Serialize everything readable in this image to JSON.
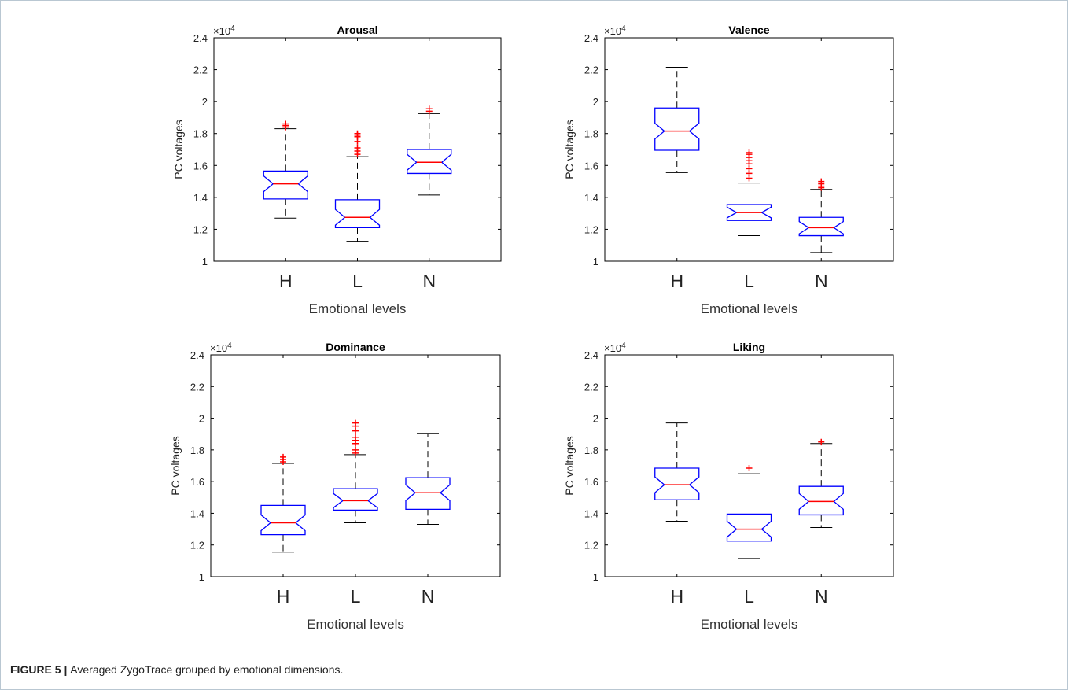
{
  "caption": {
    "label": "FIGURE 5",
    "separator": " | ",
    "text": "Averaged ZygoTrace grouped by emotional dimensions."
  },
  "chart_data": [
    {
      "type": "boxplot",
      "title": "Arousal",
      "xlabel": "Emotional levels",
      "ylabel": "PC voltages",
      "exponent": "×10",
      "exponent_power": "4",
      "ylim": [
        1.0,
        2.4
      ],
      "yticks": [
        "1",
        "1.2",
        "1.4",
        "1.6",
        "1.8",
        "2",
        "2.2",
        "2.4"
      ],
      "categories": [
        "H",
        "L",
        "N"
      ],
      "notched": true,
      "grid": false,
      "boxes": [
        {
          "category": "H",
          "min": 1.27,
          "q1": 1.39,
          "median": 1.485,
          "q3": 1.565,
          "max": 1.83,
          "outliers": [
            1.84,
            1.85,
            1.86
          ]
        },
        {
          "category": "L",
          "min": 1.125,
          "q1": 1.21,
          "median": 1.275,
          "q3": 1.385,
          "max": 1.655,
          "outliers": [
            1.67,
            1.69,
            1.71,
            1.75,
            1.78,
            1.79,
            1.8
          ]
        },
        {
          "category": "N",
          "min": 1.415,
          "q1": 1.55,
          "median": 1.62,
          "q3": 1.7,
          "max": 1.925,
          "outliers": [
            1.94,
            1.955
          ]
        }
      ]
    },
    {
      "type": "boxplot",
      "title": "Valence",
      "xlabel": "Emotional levels",
      "ylabel": "PC voltages",
      "exponent": "×10",
      "exponent_power": "4",
      "ylim": [
        1.0,
        2.4
      ],
      "yticks": [
        "1",
        "1.2",
        "1.4",
        "1.6",
        "1.8",
        "2",
        "2.2",
        "2.4"
      ],
      "categories": [
        "H",
        "L",
        "N"
      ],
      "notched": true,
      "grid": false,
      "boxes": [
        {
          "category": "H",
          "min": 1.555,
          "q1": 1.695,
          "median": 1.815,
          "q3": 1.96,
          "max": 2.215,
          "outliers": []
        },
        {
          "category": "L",
          "min": 1.16,
          "q1": 1.255,
          "median": 1.305,
          "q3": 1.355,
          "max": 1.49,
          "outliers": [
            1.52,
            1.55,
            1.58,
            1.61,
            1.63,
            1.65,
            1.67,
            1.68
          ]
        },
        {
          "category": "N",
          "min": 1.055,
          "q1": 1.16,
          "median": 1.21,
          "q3": 1.275,
          "max": 1.45,
          "outliers": [
            1.46,
            1.47,
            1.485,
            1.5
          ]
        }
      ]
    },
    {
      "type": "boxplot",
      "title": "Dominance",
      "xlabel": "Emotional levels",
      "ylabel": "PC voltages",
      "exponent": "×10",
      "exponent_power": "4",
      "ylim": [
        1.0,
        2.4
      ],
      "yticks": [
        "1",
        "1.2",
        "1.4",
        "1.6",
        "1.8",
        "2",
        "2.2",
        "2.4"
      ],
      "categories": [
        "H",
        "L",
        "N"
      ],
      "notched": true,
      "grid": false,
      "boxes": [
        {
          "category": "H",
          "min": 1.155,
          "q1": 1.265,
          "median": 1.34,
          "q3": 1.45,
          "max": 1.715,
          "outliers": [
            1.725,
            1.74,
            1.755
          ]
        },
        {
          "category": "L",
          "min": 1.34,
          "q1": 1.42,
          "median": 1.48,
          "q3": 1.555,
          "max": 1.77,
          "outliers": [
            1.78,
            1.8,
            1.84,
            1.86,
            1.88,
            1.92,
            1.95,
            1.97
          ]
        },
        {
          "category": "N",
          "min": 1.33,
          "q1": 1.425,
          "median": 1.53,
          "q3": 1.625,
          "max": 1.905,
          "outliers": []
        }
      ]
    },
    {
      "type": "boxplot",
      "title": "Liking",
      "xlabel": "Emotional levels",
      "ylabel": "PC voltages",
      "exponent": "×10",
      "exponent_power": "4",
      "ylim": [
        1.0,
        2.4
      ],
      "yticks": [
        "1",
        "1.2",
        "1.4",
        "1.6",
        "1.8",
        "2",
        "2.2",
        "2.4"
      ],
      "categories": [
        "H",
        "L",
        "N"
      ],
      "notched": true,
      "grid": false,
      "boxes": [
        {
          "category": "H",
          "min": 1.35,
          "q1": 1.485,
          "median": 1.58,
          "q3": 1.685,
          "max": 1.97,
          "outliers": []
        },
        {
          "category": "L",
          "min": 1.115,
          "q1": 1.225,
          "median": 1.3,
          "q3": 1.395,
          "max": 1.65,
          "outliers": [
            1.685
          ]
        },
        {
          "category": "N",
          "min": 1.31,
          "q1": 1.39,
          "median": 1.475,
          "q3": 1.57,
          "max": 1.84,
          "outliers": [
            1.85
          ]
        }
      ]
    }
  ],
  "colors": {
    "box": "#0000ff",
    "median": "#ff0000",
    "outlier": "#ff0000",
    "whisker": "#000000",
    "axis": "#000000"
  }
}
